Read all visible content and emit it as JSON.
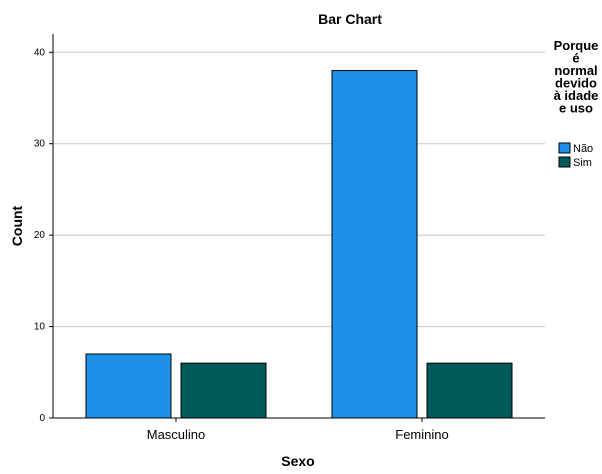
{
  "chart_data": {
    "type": "bar",
    "title": "Bar Chart",
    "xlabel": "Sexo",
    "ylabel": "Count",
    "categories": [
      "Masculino",
      "Feminino"
    ],
    "series": [
      {
        "name": "Não",
        "values": [
          7,
          38
        ],
        "color": "#1e90e8"
      },
      {
        "name": "Sim",
        "values": [
          6,
          6
        ],
        "color": "#005a5a"
      }
    ],
    "ylim": [
      0,
      42
    ],
    "yticks": [
      0,
      10,
      20,
      30,
      40
    ],
    "grid": true,
    "legend": {
      "title_lines": [
        "Porque",
        "é",
        "normal",
        "devido",
        "à idade",
        "e uso"
      ],
      "placement": "right"
    }
  }
}
